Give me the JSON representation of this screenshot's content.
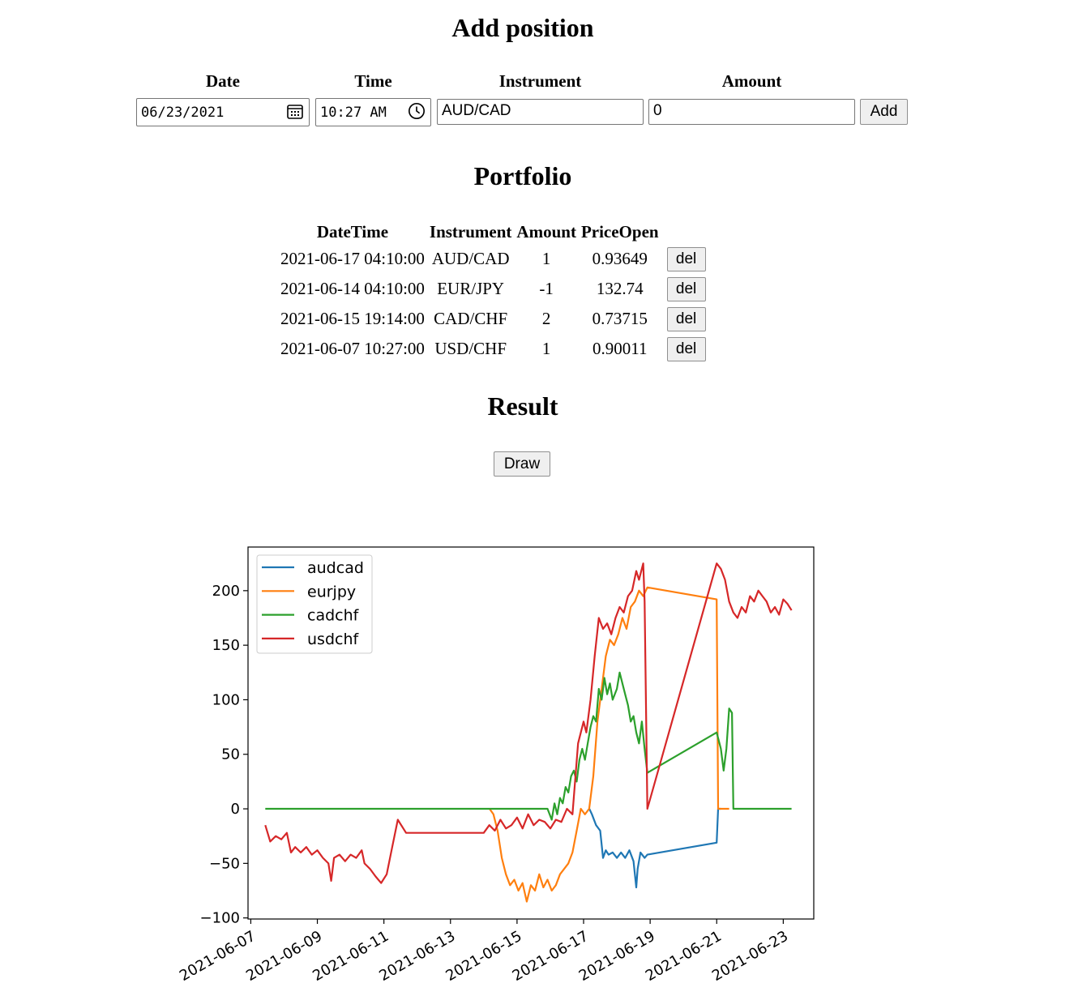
{
  "add_position": {
    "title": "Add position",
    "date_label": "Date",
    "time_label": "Time",
    "instrument_label": "Instrument",
    "amount_label": "Amount",
    "date_value": "06/23/2021",
    "time_value": "10:27 AM",
    "instrument_value": "AUD/CAD",
    "amount_value": "0",
    "add_button": "Add"
  },
  "portfolio": {
    "title": "Portfolio",
    "columns": [
      "DateTime",
      "Instrument",
      "Amount",
      "PriceOpen"
    ],
    "rows": [
      {
        "datetime": "2021-06-17 04:10:00",
        "instrument": "AUD/CAD",
        "amount": "1",
        "price_open": "0.93649",
        "action": "del"
      },
      {
        "datetime": "2021-06-14 04:10:00",
        "instrument": "EUR/JPY",
        "amount": "-1",
        "price_open": "132.74",
        "action": "del"
      },
      {
        "datetime": "2021-06-15 19:14:00",
        "instrument": "CAD/CHF",
        "amount": "2",
        "price_open": "0.73715",
        "action": "del"
      },
      {
        "datetime": "2021-06-07 10:27:00",
        "instrument": "USD/CHF",
        "amount": "1",
        "price_open": "0.90011",
        "action": "del"
      }
    ]
  },
  "result": {
    "title": "Result",
    "draw_button": "Draw"
  },
  "chart_data": {
    "type": "line",
    "title": "",
    "xlabel": "",
    "ylabel": "",
    "x_ticks": [
      "2021-06-07",
      "2021-06-09",
      "2021-06-11",
      "2021-06-13",
      "2021-06-15",
      "2021-06-17",
      "2021-06-19",
      "2021-06-21",
      "2021-06-23"
    ],
    "y_ticks": [
      200,
      150,
      100,
      50,
      0,
      -50,
      -100
    ],
    "y_tick_labels": [
      "200",
      "150",
      "100",
      "50",
      "0",
      "−50",
      "−100"
    ],
    "xlim": [
      "2021-06-06T22:00",
      "2021-06-23T22:00"
    ],
    "ylim": [
      -101,
      240
    ],
    "grid": false,
    "legend": "top-left",
    "series": [
      {
        "name": "audcad",
        "color": "#1f77b4",
        "points": [
          [
            "2021-06-17T04:10",
            0
          ],
          [
            "2021-06-17T06:00",
            -5
          ],
          [
            "2021-06-17T09:00",
            -15
          ],
          [
            "2021-06-17T12:00",
            -20
          ],
          [
            "2021-06-17T14:00",
            -45
          ],
          [
            "2021-06-17T16:00",
            -38
          ],
          [
            "2021-06-17T18:00",
            -42
          ],
          [
            "2021-06-17T21:00",
            -40
          ],
          [
            "2021-06-18T00:00",
            -45
          ],
          [
            "2021-06-18T03:00",
            -40
          ],
          [
            "2021-06-18T06:00",
            -45
          ],
          [
            "2021-06-18T09:00",
            -38
          ],
          [
            "2021-06-18T12:00",
            -48
          ],
          [
            "2021-06-18T14:00",
            -72
          ],
          [
            "2021-06-18T15:00",
            -55
          ],
          [
            "2021-06-18T17:00",
            -40
          ],
          [
            "2021-06-18T20:00",
            -45
          ],
          [
            "2021-06-18T22:00",
            -42
          ],
          [
            "2021-06-21T00:00",
            -31
          ],
          [
            "2021-06-21T01:00",
            0
          ],
          [
            "2021-06-21T03:00",
            0
          ]
        ]
      },
      {
        "name": "eurjpy",
        "color": "#ff7f0e",
        "points": [
          [
            "2021-06-14T04:10",
            0
          ],
          [
            "2021-06-14T07:00",
            -5
          ],
          [
            "2021-06-14T10:00",
            -20
          ],
          [
            "2021-06-14T13:00",
            -45
          ],
          [
            "2021-06-14T16:00",
            -60
          ],
          [
            "2021-06-14T19:00",
            -70
          ],
          [
            "2021-06-14T22:00",
            -65
          ],
          [
            "2021-06-15T01:00",
            -75
          ],
          [
            "2021-06-15T04:00",
            -68
          ],
          [
            "2021-06-15T07:00",
            -85
          ],
          [
            "2021-06-15T10:00",
            -70
          ],
          [
            "2021-06-15T13:00",
            -75
          ],
          [
            "2021-06-15T16:00",
            -60
          ],
          [
            "2021-06-15T19:00",
            -72
          ],
          [
            "2021-06-15T22:00",
            -65
          ],
          [
            "2021-06-16T01:00",
            -75
          ],
          [
            "2021-06-16T04:00",
            -70
          ],
          [
            "2021-06-16T07:00",
            -60
          ],
          [
            "2021-06-16T10:00",
            -55
          ],
          [
            "2021-06-16T13:00",
            -50
          ],
          [
            "2021-06-16T16:00",
            -40
          ],
          [
            "2021-06-16T19:00",
            -20
          ],
          [
            "2021-06-16T22:00",
            0
          ],
          [
            "2021-06-17T01:00",
            -5
          ],
          [
            "2021-06-17T04:00",
            0
          ],
          [
            "2021-06-17T07:00",
            30
          ],
          [
            "2021-06-17T10:00",
            80
          ],
          [
            "2021-06-17T13:00",
            110
          ],
          [
            "2021-06-17T16:00",
            140
          ],
          [
            "2021-06-17T19:00",
            155
          ],
          [
            "2021-06-17T22:00",
            150
          ],
          [
            "2021-06-18T01:00",
            160
          ],
          [
            "2021-06-18T04:00",
            175
          ],
          [
            "2021-06-18T07:00",
            165
          ],
          [
            "2021-06-18T10:00",
            185
          ],
          [
            "2021-06-18T13:00",
            190
          ],
          [
            "2021-06-18T16:00",
            200
          ],
          [
            "2021-06-18T19:00",
            195
          ],
          [
            "2021-06-18T22:00",
            203
          ],
          [
            "2021-06-21T00:00",
            192
          ],
          [
            "2021-06-21T01:00",
            0
          ],
          [
            "2021-06-21T09:00",
            0
          ]
        ]
      },
      {
        "name": "cadchf",
        "color": "#2ca02c",
        "points": [
          [
            "2021-06-07T10:27",
            0
          ],
          [
            "2021-06-15T19:14",
            0
          ],
          [
            "2021-06-15T22:00",
            0
          ],
          [
            "2021-06-16T01:00",
            -10
          ],
          [
            "2021-06-16T03:00",
            5
          ],
          [
            "2021-06-16T05:00",
            -5
          ],
          [
            "2021-06-16T07:00",
            10
          ],
          [
            "2021-06-16T09:00",
            5
          ],
          [
            "2021-06-16T11:00",
            20
          ],
          [
            "2021-06-16T13:00",
            15
          ],
          [
            "2021-06-16T15:00",
            30
          ],
          [
            "2021-06-16T17:00",
            35
          ],
          [
            "2021-06-16T19:00",
            25
          ],
          [
            "2021-06-16T21:00",
            45
          ],
          [
            "2021-06-16T23:00",
            55
          ],
          [
            "2021-06-17T01:00",
            45
          ],
          [
            "2021-06-17T03:00",
            60
          ],
          [
            "2021-06-17T05:00",
            75
          ],
          [
            "2021-06-17T07:00",
            85
          ],
          [
            "2021-06-17T09:00",
            80
          ],
          [
            "2021-06-17T11:00",
            110
          ],
          [
            "2021-06-17T13:00",
            100
          ],
          [
            "2021-06-17T15:00",
            120
          ],
          [
            "2021-06-17T17:00",
            105
          ],
          [
            "2021-06-17T19:00",
            115
          ],
          [
            "2021-06-17T21:00",
            100
          ],
          [
            "2021-06-18T00:00",
            110
          ],
          [
            "2021-06-18T02:00",
            125
          ],
          [
            "2021-06-18T04:00",
            115
          ],
          [
            "2021-06-18T06:00",
            105
          ],
          [
            "2021-06-18T08:00",
            95
          ],
          [
            "2021-06-18T10:00",
            80
          ],
          [
            "2021-06-18T12:00",
            85
          ],
          [
            "2021-06-18T14:00",
            70
          ],
          [
            "2021-06-18T16:00",
            60
          ],
          [
            "2021-06-18T18:00",
            80
          ],
          [
            "2021-06-18T20:00",
            55
          ],
          [
            "2021-06-18T22:00",
            33
          ],
          [
            "2021-06-21T00:00",
            70
          ],
          [
            "2021-06-21T03:00",
            55
          ],
          [
            "2021-06-21T05:00",
            35
          ],
          [
            "2021-06-21T07:00",
            55
          ],
          [
            "2021-06-21T09:00",
            92
          ],
          [
            "2021-06-21T11:00",
            88
          ],
          [
            "2021-06-21T12:00",
            0
          ],
          [
            "2021-06-23T06:00",
            0
          ]
        ]
      },
      {
        "name": "usdchf",
        "color": "#d62728",
        "points": [
          [
            "2021-06-07T10:27",
            -15
          ],
          [
            "2021-06-07T14:00",
            -30
          ],
          [
            "2021-06-07T18:00",
            -25
          ],
          [
            "2021-06-07T22:00",
            -28
          ],
          [
            "2021-06-08T02:00",
            -22
          ],
          [
            "2021-06-08T05:00",
            -40
          ],
          [
            "2021-06-08T08:00",
            -35
          ],
          [
            "2021-06-08T12:00",
            -40
          ],
          [
            "2021-06-08T16:00",
            -35
          ],
          [
            "2021-06-08T20:00",
            -42
          ],
          [
            "2021-06-09T00:00",
            -38
          ],
          [
            "2021-06-09T04:00",
            -45
          ],
          [
            "2021-06-09T08:00",
            -50
          ],
          [
            "2021-06-09T10:00",
            -66
          ],
          [
            "2021-06-09T12:00",
            -45
          ],
          [
            "2021-06-09T16:00",
            -42
          ],
          [
            "2021-06-09T20:00",
            -48
          ],
          [
            "2021-06-10T00:00",
            -42
          ],
          [
            "2021-06-10T04:00",
            -45
          ],
          [
            "2021-06-10T08:00",
            -38
          ],
          [
            "2021-06-10T10:00",
            -50
          ],
          [
            "2021-06-10T14:00",
            -55
          ],
          [
            "2021-06-10T18:00",
            -62
          ],
          [
            "2021-06-10T22:00",
            -68
          ],
          [
            "2021-06-11T02:00",
            -60
          ],
          [
            "2021-06-11T06:00",
            -35
          ],
          [
            "2021-06-11T10:00",
            -10
          ],
          [
            "2021-06-11T16:00",
            -22
          ],
          [
            "2021-06-14T00:00",
            -22
          ],
          [
            "2021-06-14T04:00",
            -15
          ],
          [
            "2021-06-14T08:00",
            -20
          ],
          [
            "2021-06-14T12:00",
            -10
          ],
          [
            "2021-06-14T16:00",
            -18
          ],
          [
            "2021-06-14T20:00",
            -15
          ],
          [
            "2021-06-15T00:00",
            -8
          ],
          [
            "2021-06-15T04:00",
            -18
          ],
          [
            "2021-06-15T08:00",
            -5
          ],
          [
            "2021-06-15T12:00",
            -15
          ],
          [
            "2021-06-15T16:00",
            -10
          ],
          [
            "2021-06-15T20:00",
            -12
          ],
          [
            "2021-06-16T00:00",
            -18
          ],
          [
            "2021-06-16T04:00",
            -10
          ],
          [
            "2021-06-16T08:00",
            -12
          ],
          [
            "2021-06-16T12:00",
            0
          ],
          [
            "2021-06-16T16:00",
            -5
          ],
          [
            "2021-06-16T20:00",
            60
          ],
          [
            "2021-06-17T00:00",
            80
          ],
          [
            "2021-06-17T02:00",
            70
          ],
          [
            "2021-06-17T05:00",
            100
          ],
          [
            "2021-06-17T08:00",
            140
          ],
          [
            "2021-06-17T11:00",
            175
          ],
          [
            "2021-06-17T14:00",
            165
          ],
          [
            "2021-06-17T17:00",
            170
          ],
          [
            "2021-06-17T20:00",
            160
          ],
          [
            "2021-06-17T23:00",
            175
          ],
          [
            "2021-06-18T02:00",
            185
          ],
          [
            "2021-06-18T05:00",
            180
          ],
          [
            "2021-06-18T08:00",
            195
          ],
          [
            "2021-06-18T11:00",
            200
          ],
          [
            "2021-06-18T14:00",
            218
          ],
          [
            "2021-06-18T16:00",
            210
          ],
          [
            "2021-06-18T19:00",
            225
          ],
          [
            "2021-06-18T20:00",
            190
          ],
          [
            "2021-06-18T22:00",
            0
          ],
          [
            "2021-06-21T00:00",
            225
          ],
          [
            "2021-06-21T03:00",
            220
          ],
          [
            "2021-06-21T06:00",
            210
          ],
          [
            "2021-06-21T09:00",
            190
          ],
          [
            "2021-06-21T12:00",
            180
          ],
          [
            "2021-06-21T15:00",
            175
          ],
          [
            "2021-06-21T18:00",
            185
          ],
          [
            "2021-06-21T21:00",
            180
          ],
          [
            "2021-06-22T00:00",
            195
          ],
          [
            "2021-06-22T03:00",
            190
          ],
          [
            "2021-06-22T06:00",
            200
          ],
          [
            "2021-06-22T09:00",
            195
          ],
          [
            "2021-06-22T12:00",
            190
          ],
          [
            "2021-06-22T15:00",
            180
          ],
          [
            "2021-06-22T18:00",
            185
          ],
          [
            "2021-06-22T21:00",
            178
          ],
          [
            "2021-06-23T00:00",
            192
          ],
          [
            "2021-06-23T03:00",
            188
          ],
          [
            "2021-06-23T06:00",
            182
          ]
        ]
      }
    ]
  }
}
